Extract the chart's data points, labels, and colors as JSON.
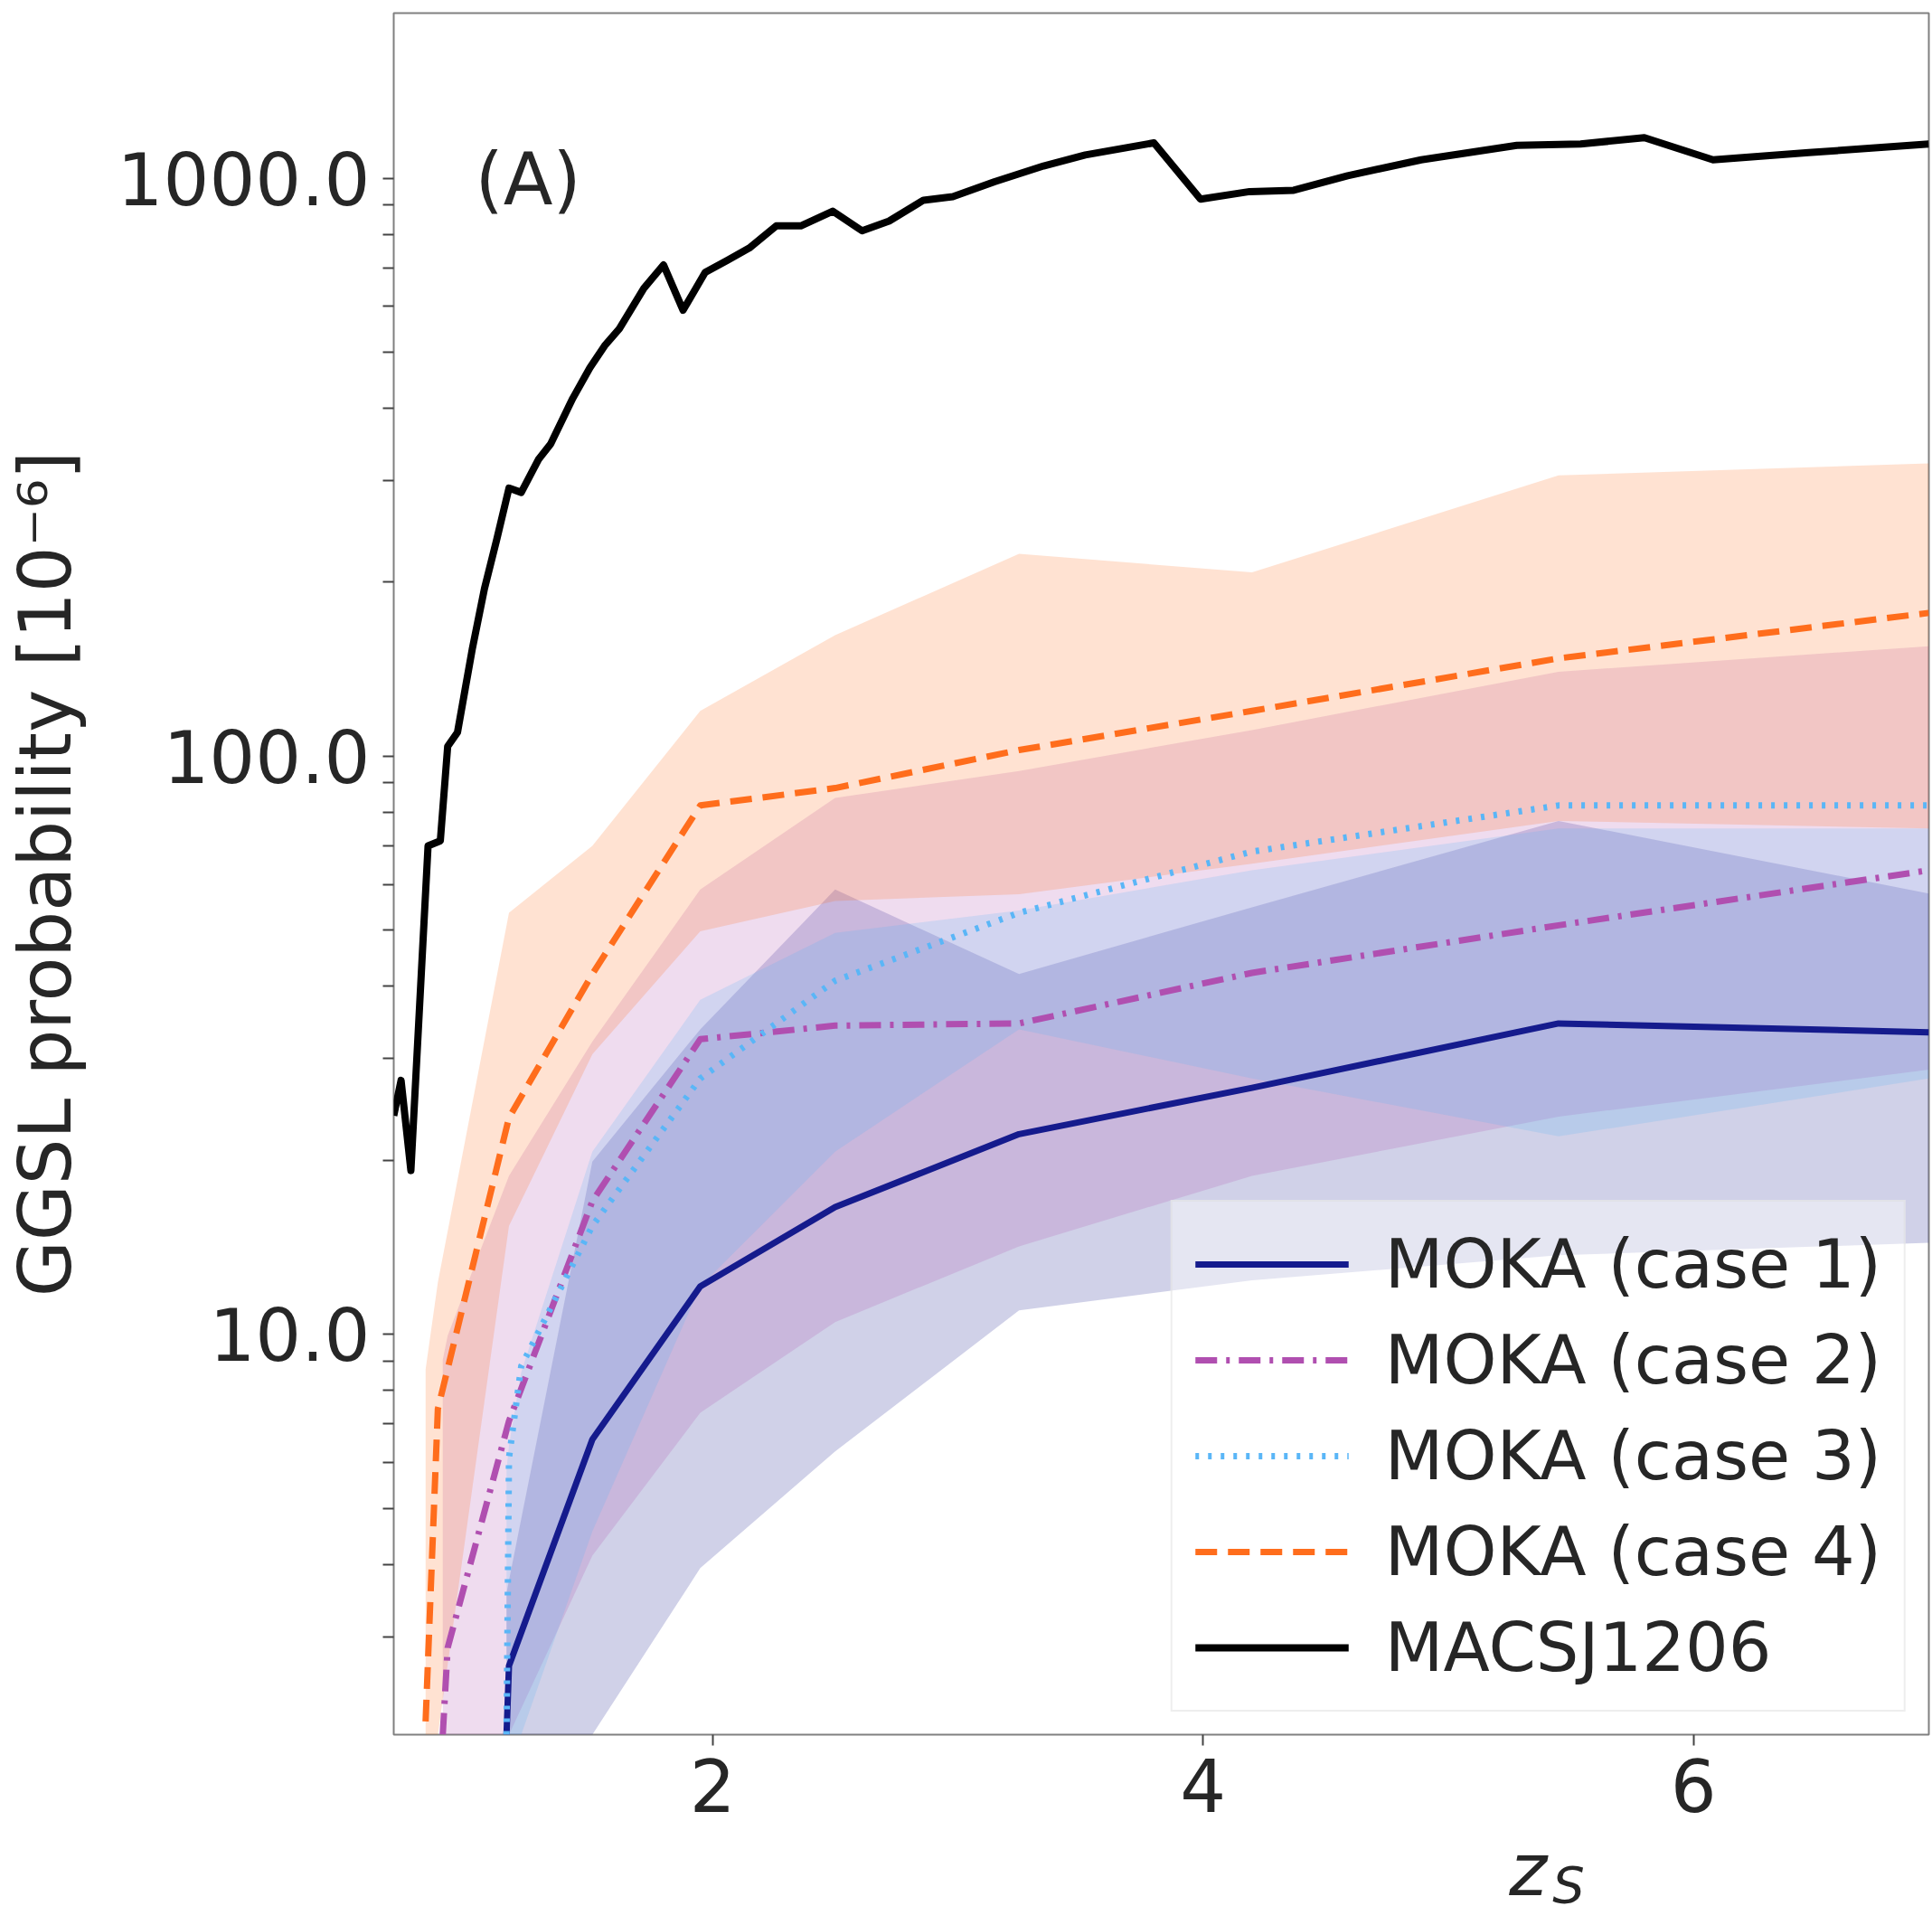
{
  "chart_data": {
    "type": "line",
    "xlabel": "z$_{S}$",
    "ylabel": "GGSL probability [10⁻⁶]",
    "annotations": [
      "(A)"
    ],
    "log": "y",
    "grid": false,
    "legend": "bottom right",
    "xlim": [
      0.7,
      6.96
    ],
    "xticks": [
      2,
      4,
      6
    ],
    "ylim": [
      2.03,
      1930
    ],
    "yticks": [
      {
        "value": 3,
        "label": null
      },
      {
        "value": 4,
        "label": null
      },
      {
        "value": 5,
        "label": null
      },
      {
        "value": 6,
        "label": null
      },
      {
        "value": 7,
        "label": null
      },
      {
        "value": 8,
        "label": null
      },
      {
        "value": 9,
        "label": null
      },
      {
        "value": 10,
        "label": "10.0"
      },
      {
        "value": 20,
        "label": null
      },
      {
        "value": 30,
        "label": null
      },
      {
        "value": 40,
        "label": null
      },
      {
        "value": 50,
        "label": null
      },
      {
        "value": 60,
        "label": null
      },
      {
        "value": 70,
        "label": null
      },
      {
        "value": 80,
        "label": null
      },
      {
        "value": 90,
        "label": null
      },
      {
        "value": 100,
        "label": "100.0"
      },
      {
        "value": 200,
        "label": null
      },
      {
        "value": 300,
        "label": null
      },
      {
        "value": 400,
        "label": null
      },
      {
        "value": 500,
        "label": null
      },
      {
        "value": 600,
        "label": null
      },
      {
        "value": 700,
        "label": null
      },
      {
        "value": 800,
        "label": null
      },
      {
        "value": 900,
        "label": null
      },
      {
        "value": 1000,
        "label": "1000.0"
      }
    ],
    "series": [
      {
        "name": "MOKA (case 1)",
        "color": "#151b8d",
        "line_style": "solid",
        "x": [
          1.16,
          1.17,
          1.51,
          1.95,
          2.5,
          3.25,
          4.2,
          5.45,
          6.96
        ],
        "values": [
          2.03,
          2.67,
          6.58,
          12.1,
          16.6,
          22.2,
          26.7,
          34.5,
          33.3
        ],
        "lower": [
          2.03,
          2.03,
          2.03,
          3.94,
          6.27,
          11.0,
          12.4,
          13.7,
          14.4
        ],
        "upper": [
          3.57,
          3.75,
          19.9,
          33.7,
          58.8,
          42.0,
          54.8,
          77.3,
          57.9
        ]
      },
      {
        "name": "MOKA (case 2)",
        "color": "#b04fb0",
        "line_style": "dashdot",
        "x": [
          0.9,
          0.92,
          1.17,
          1.51,
          1.95,
          2.5,
          3.25,
          4.2,
          5.45,
          6.96
        ],
        "values": [
          2.03,
          2.87,
          7.08,
          17.0,
          32.4,
          34.2,
          34.5,
          42.2,
          51.0,
          63.5
        ],
        "lower": [
          2.03,
          2.03,
          2.03,
          4.14,
          7.32,
          10.5,
          14.2,
          18.8,
          23.8,
          28.7
        ],
        "upper": [
          9.03,
          9.95,
          18.8,
          32.1,
          58.8,
          84.7,
          94.3,
          111,
          140,
          155
        ]
      },
      {
        "name": "MOKA (case 3)",
        "color": "#5ab6f7",
        "line_style": "dotted",
        "x": [
          1.16,
          1.17,
          1.22,
          1.51,
          1.95,
          2.5,
          3.25,
          4.2,
          5.45,
          6.96
        ],
        "values": [
          2.03,
          6.11,
          8.81,
          15.4,
          27.7,
          40.9,
          53.6,
          68.4,
          82.2,
          82.2
        ],
        "lower": [
          2.03,
          2.03,
          2.03,
          4.56,
          12.1,
          20.7,
          33.7,
          27.7,
          22.0,
          27.7
        ],
        "upper": [
          5.82,
          6.42,
          8.6,
          20.7,
          37.9,
          49.5,
          54.1,
          63.5,
          75.0,
          75.0
        ]
      },
      {
        "name": "MOKA (case 4)",
        "color": "#ff6d1c",
        "line_style": "dashed",
        "x": [
          0.83,
          0.88,
          1.17,
          1.51,
          1.95,
          2.5,
          3.25,
          4.2,
          5.45,
          6.96
        ],
        "values": [
          2.14,
          7.43,
          23.7,
          42.0,
          82.2,
          88.1,
          102.5,
          119.8,
          147.7,
          177
        ],
        "lower": [
          2.03,
          2.03,
          15.4,
          30.5,
          49.8,
          56.2,
          57.7,
          65.2,
          77.3,
          75.0
        ],
        "upper": [
          8.7,
          12.3,
          53.6,
          70.0,
          119.8,
          162,
          224,
          208,
          306,
          321
        ]
      },
      {
        "name": "MACSJ1206",
        "color": "#000000",
        "line_style": "solid",
        "x": [
          0.7,
          0.73,
          0.77,
          0.84,
          0.89,
          0.92,
          0.96,
          1.02,
          1.07,
          1.12,
          1.17,
          1.22,
          1.29,
          1.34,
          1.43,
          1.5,
          1.56,
          1.62,
          1.72,
          1.8,
          1.88,
          1.97,
          2.06,
          2.15,
          2.26,
          2.36,
          2.49,
          2.61,
          2.72,
          2.86,
          2.98,
          3.15,
          3.35,
          3.52,
          3.8,
          3.99,
          4.19,
          4.37,
          4.59,
          4.89,
          5.28,
          5.54,
          5.8,
          6.08,
          6.47,
          6.96
        ],
        "values": [
          23.9,
          27.5,
          19.2,
          70,
          71.4,
          104,
          110,
          153,
          195,
          237,
          291,
          286,
          326,
          347,
          416,
          470,
          513,
          549,
          645,
          708,
          591,
          687,
          721,
          757,
          827,
          827,
          877,
          811,
          843,
          916,
          929,
          986,
          1050,
          1097,
          1151,
          920,
          948,
          953,
          1010,
          1076,
          1140,
          1146,
          1175,
          1076,
          1107,
          1146
        ]
      }
    ]
  }
}
